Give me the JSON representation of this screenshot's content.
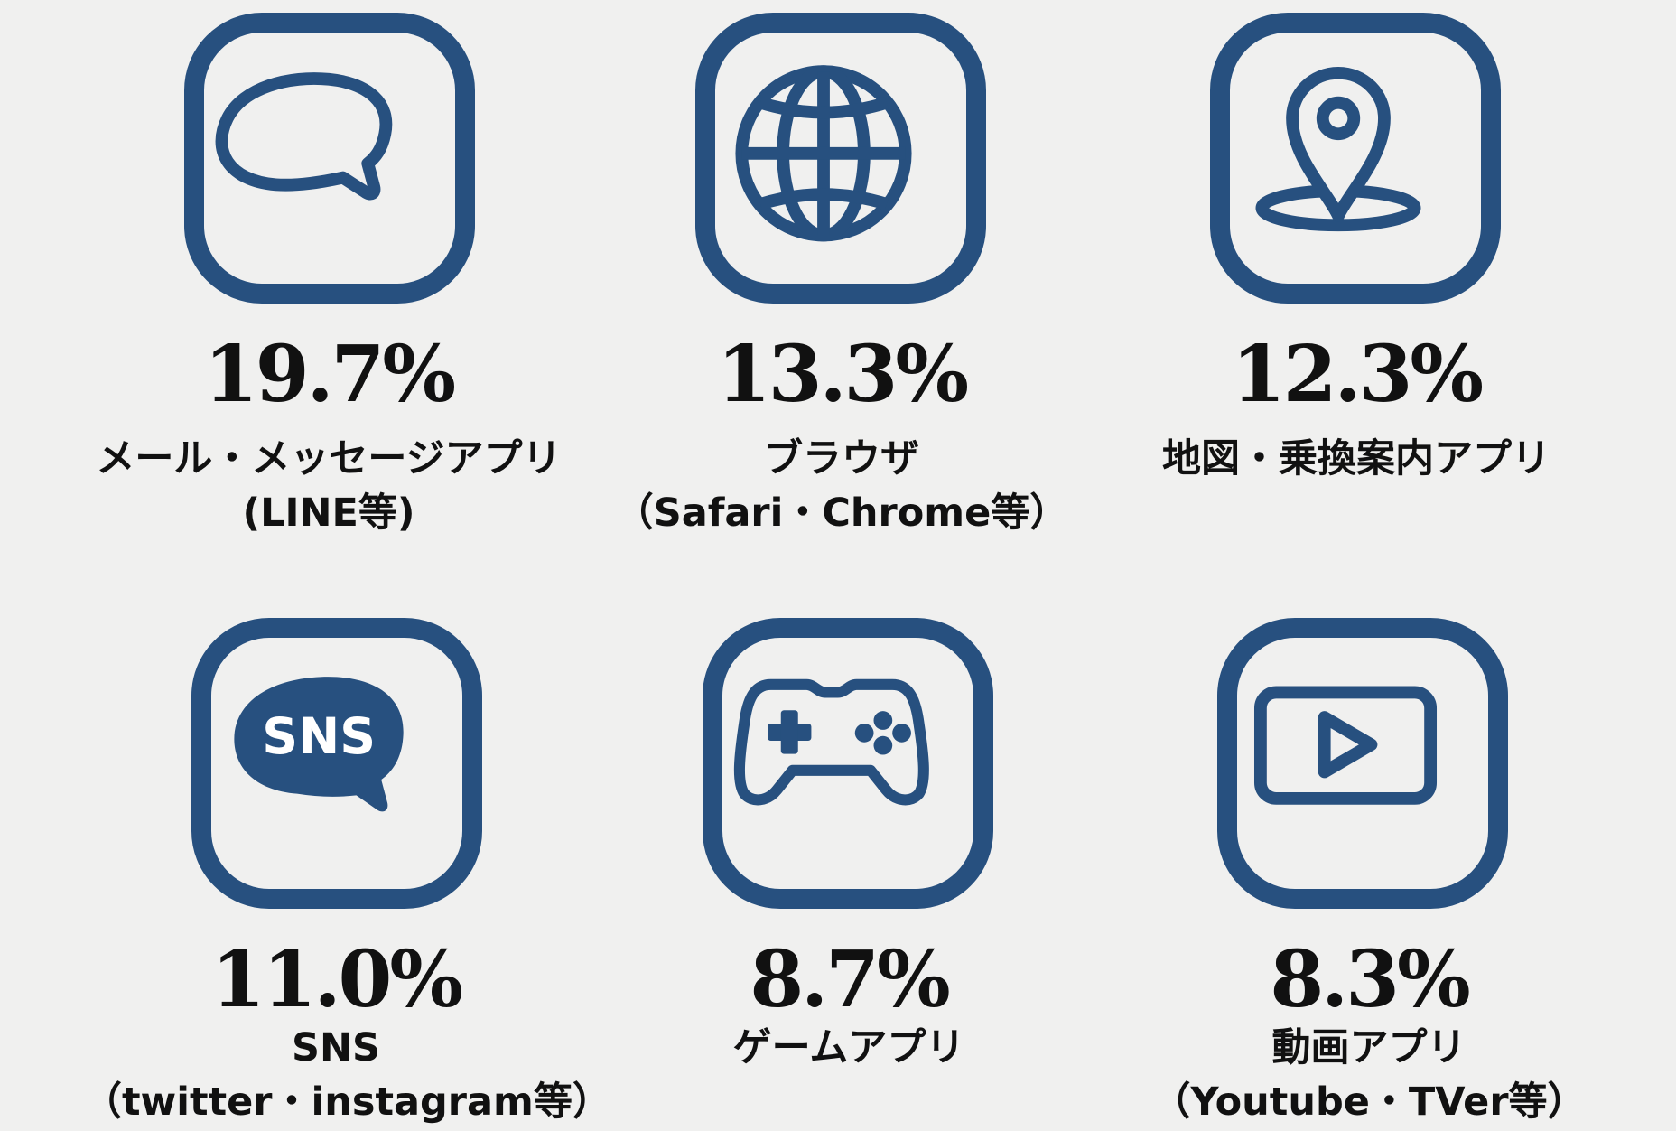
{
  "colors": {
    "icon": "#27507f",
    "background": "#f0f0ef",
    "text": "#111111"
  },
  "items": [
    {
      "icon": "speech-bubble-icon",
      "percent": "19.7%",
      "label_line1": "メール・メッセージアプリ",
      "label_line2": "(LINE等)"
    },
    {
      "icon": "globe-icon",
      "percent": "13.3%",
      "label_line1": "ブラウザ",
      "label_line2": "（Safari・Chrome等）"
    },
    {
      "icon": "map-pin-icon",
      "percent": "12.3%",
      "label_line1": "地図・乗換案内アプリ",
      "label_line2": ""
    },
    {
      "icon": "sns-bubble-icon",
      "icon_text": "SNS",
      "percent": "11.0%",
      "label_line1": "SNS",
      "label_line2": "（twitter・instagram等）"
    },
    {
      "icon": "game-controller-icon",
      "percent": "8.7%",
      "label_line1": "ゲームアプリ",
      "label_line2": ""
    },
    {
      "icon": "video-play-icon",
      "percent": "8.3%",
      "label_line1": "動画アプリ",
      "label_line2": "（Youtube・TVer等）"
    }
  ]
}
